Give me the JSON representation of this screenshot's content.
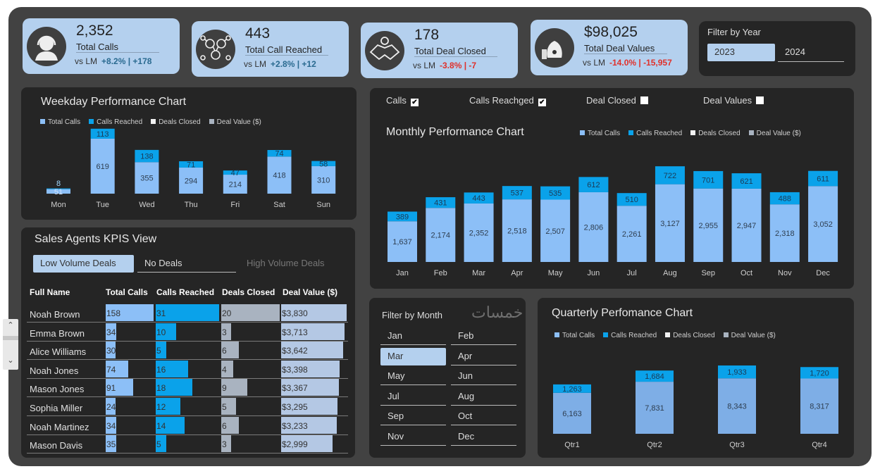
{
  "kpis": [
    {
      "value": "2,352",
      "label": "Total Calls",
      "vs": "vs LM",
      "change": "+8.2% | +178",
      "trend": "positive",
      "icon": "headset-agent-icon"
    },
    {
      "value": "443",
      "label": "Total Call Reached",
      "vs": "vs LM",
      "change": "+2.8% | +12",
      "trend": "positive",
      "icon": "network-people-icon"
    },
    {
      "value": "178",
      "label": "Total Deal Closed",
      "vs": "vs LM",
      "change": "-3.8% | -7",
      "trend": "negative",
      "icon": "handshake-icon"
    },
    {
      "value": "$98,025",
      "label": "Total Deal Values",
      "vs": "vs LM",
      "change": "-14.0% | -15,957",
      "trend": "negative",
      "icon": "money-bag-icon"
    }
  ],
  "year_filter": {
    "title": "Filter by Year",
    "options": [
      "2023",
      "2024"
    ],
    "selected": "2023"
  },
  "legend": [
    "Total Calls",
    "Calls Reached",
    "Deals Closed",
    "Deal Value ($)"
  ],
  "colors": {
    "total_calls": "#8cbff7",
    "calls_reached": "#0aa2ea",
    "deals_closed": "#f2f2f2",
    "deal_value": "#a9b3c0",
    "positive": "#2a6a90",
    "negative": "#e0302a"
  },
  "weekday": {
    "title": "Weekday Performance Chart"
  },
  "monthly": {
    "title": "Monthly Performance Chart",
    "toggles": [
      {
        "label": "Calls",
        "checked": true
      },
      {
        "label": "Calls Reachged",
        "checked": true
      },
      {
        "label": "Deal Closed",
        "checked": false
      },
      {
        "label": "Deal Values",
        "checked": false
      }
    ]
  },
  "quarterly": {
    "title": "Quarterly Perfomance Chart"
  },
  "chart_data": [
    {
      "type": "bar",
      "stacked": true,
      "title": "Weekday Performance Chart",
      "categories": [
        "Mon",
        "Tue",
        "Wed",
        "Thu",
        "Fri",
        "Sat",
        "Sun"
      ],
      "series": [
        {
          "name": "Total Calls",
          "values": [
            51,
            619,
            355,
            294,
            214,
            418,
            310
          ]
        },
        {
          "name": "Calls Reached",
          "values": [
            8,
            113,
            138,
            71,
            47,
            74,
            58
          ]
        }
      ],
      "legend": "top"
    },
    {
      "type": "bar",
      "stacked": true,
      "title": "Monthly Performance Chart",
      "categories": [
        "Jan",
        "Feb",
        "Mar",
        "Apr",
        "May",
        "Jun",
        "Jul",
        "Aug",
        "Sep",
        "Oct",
        "Nov",
        "Dec"
      ],
      "series": [
        {
          "name": "Total Calls",
          "values": [
            1637,
            2174,
            2352,
            2518,
            2507,
            2806,
            2261,
            3127,
            2955,
            2947,
            2318,
            3052
          ]
        },
        {
          "name": "Calls Reached",
          "values": [
            389,
            431,
            443,
            537,
            535,
            612,
            510,
            722,
            701,
            621,
            488,
            611
          ]
        }
      ],
      "legend": "top-right"
    },
    {
      "type": "bar",
      "stacked": true,
      "title": "Quarterly Perfomance Chart",
      "categories": [
        "Qtr1",
        "Qtr2",
        "Qtr3",
        "Qtr4"
      ],
      "series": [
        {
          "name": "Total Calls",
          "values": [
            6163,
            7831,
            8343,
            8317
          ]
        },
        {
          "name": "Calls Reached",
          "values": [
            1263,
            1684,
            1933,
            1720
          ]
        }
      ],
      "legend": "top"
    }
  ],
  "agents": {
    "title": "Sales Agents KPIS View",
    "segments": [
      "Low Volume Deals",
      "No Deals",
      "High Volume Deals"
    ],
    "selected_segment": "Low Volume Deals",
    "columns": [
      "Full Name",
      "Total Calls",
      "Calls Reached",
      "Deals Closed",
      "Deal Value ($)"
    ],
    "rows": [
      {
        "name": "Noah Brown",
        "calls": 158,
        "reached": 31,
        "deals": 20,
        "value": "$3,830",
        "value_num": 3830
      },
      {
        "name": "Emma Brown",
        "calls": 34,
        "reached": 10,
        "deals": 3,
        "value": "$3,713",
        "value_num": 3713
      },
      {
        "name": "Alice Williams",
        "calls": 30,
        "reached": 5,
        "deals": 6,
        "value": "$3,642",
        "value_num": 3642
      },
      {
        "name": "Noah Jones",
        "calls": 74,
        "reached": 16,
        "deals": 4,
        "value": "$3,398",
        "value_num": 3398
      },
      {
        "name": "Mason Jones",
        "calls": 91,
        "reached": 18,
        "deals": 9,
        "value": "$3,367",
        "value_num": 3367
      },
      {
        "name": "Sophia Miller",
        "calls": 24,
        "reached": 12,
        "deals": 5,
        "value": "$3,295",
        "value_num": 3295
      },
      {
        "name": "Noah Martinez",
        "calls": 34,
        "reached": 14,
        "deals": 6,
        "value": "$3,233",
        "value_num": 3233
      },
      {
        "name": "Mason Davis",
        "calls": 35,
        "reached": 5,
        "deals": 3,
        "value": "$2,999",
        "value_num": 2999
      }
    ]
  },
  "month_filter": {
    "title": "Filter by Month",
    "months": [
      "Jan",
      "Feb",
      "Mar",
      "Apr",
      "May",
      "Jun",
      "Jul",
      "Aug",
      "Sep",
      "Oct",
      "Nov",
      "Dec"
    ],
    "selected": "Mar"
  },
  "watermark": "خمسات"
}
